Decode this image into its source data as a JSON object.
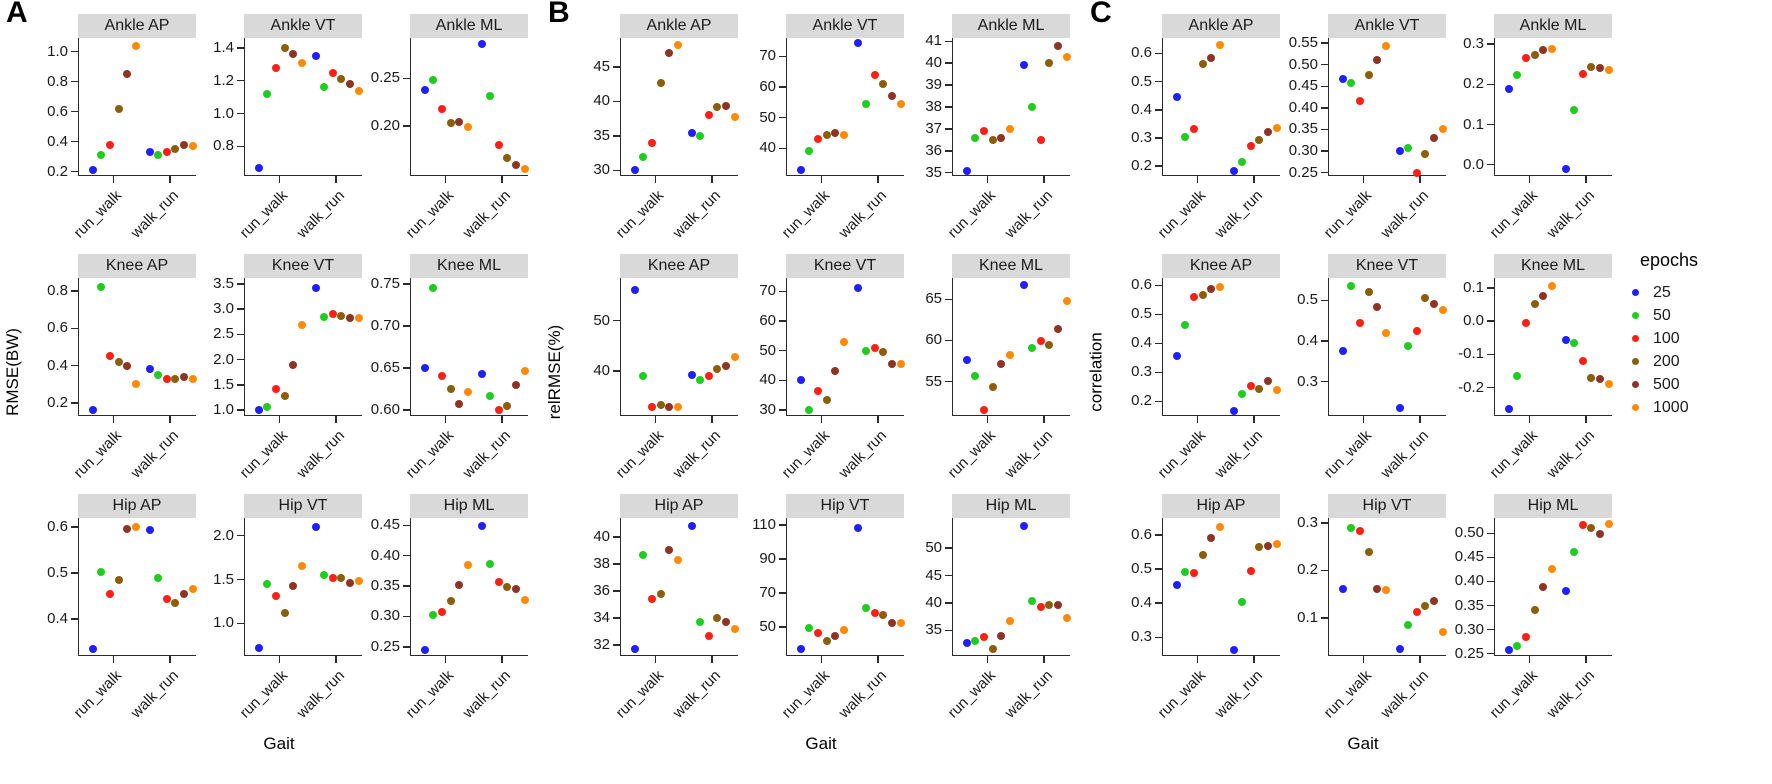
{
  "chart_data": {
    "type": "scatter",
    "title": "",
    "xlabel": "Gait",
    "categories": [
      "run_walk",
      "walk_run"
    ],
    "grid": "off",
    "legend_position": "right",
    "colors": {
      "strip_bg": "#D9D9D9",
      "axis": "#2B2B2B"
    },
    "epochs_legend": {
      "title": "epochs",
      "entries": [
        {
          "label": "25",
          "color": "#1F1FFF"
        },
        {
          "label": "50",
          "color": "#21CC21"
        },
        {
          "label": "100",
          "color": "#FF2015"
        },
        {
          "label": "200",
          "color": "#8A5E0A"
        },
        {
          "label": "500",
          "color": "#8E3425"
        },
        {
          "label": "1000",
          "color": "#FF8A05"
        }
      ]
    },
    "panels": [
      {
        "label": "A",
        "ylabel": "RMSE(BW)",
        "subplots": [
          {
            "title": "Ankle AP",
            "ylim": [
              0.17,
              1.09
            ],
            "yticks": [
              "0.2",
              "0.4",
              "0.6",
              "0.8",
              "1.0"
            ],
            "series": {
              "run_walk": [
                0.21,
                0.31,
                0.38,
                0.62,
                0.85,
                1.04
              ],
              "walk_run": [
                0.33,
                0.31,
                0.33,
                0.35,
                0.375,
                0.37
              ]
            }
          },
          {
            "title": "Ankle VT",
            "ylim": [
              0.62,
              1.46
            ],
            "yticks": [
              "0.8",
              "1.0",
              "1.2",
              "1.4"
            ],
            "series": {
              "run_walk": [
                0.67,
                1.12,
                1.28,
                1.4,
                1.36,
                1.31
              ],
              "walk_run": [
                1.35,
                1.16,
                1.25,
                1.21,
                1.18,
                1.14
              ]
            }
          },
          {
            "title": "Ankle ML",
            "ylim": [
              0.148,
              0.292
            ],
            "yticks": [
              "0.20",
              "0.25"
            ],
            "series": {
              "run_walk": [
                0.238,
                0.248,
                0.218,
                0.203,
                0.204,
                0.199
              ],
              "walk_run": [
                0.286,
                0.232,
                0.18,
                0.167,
                0.16,
                0.155
              ]
            }
          },
          {
            "title": "Knee AP",
            "ylim": [
              0.13,
              0.87
            ],
            "yticks": [
              "0.2",
              "0.4",
              "0.6",
              "0.8"
            ],
            "series": {
              "run_walk": [
                0.16,
                0.82,
                0.45,
                0.42,
                0.4,
                0.3
              ],
              "walk_run": [
                0.38,
                0.35,
                0.33,
                0.33,
                0.34,
                0.33
              ]
            }
          },
          {
            "title": "Knee VT",
            "ylim": [
              0.88,
              3.62
            ],
            "yticks": [
              "1.0",
              "1.5",
              "2.0",
              "2.5",
              "3.0",
              "3.5"
            ],
            "series": {
              "run_walk": [
                1.0,
                1.06,
                1.41,
                1.27,
                1.9,
                2.69
              ],
              "walk_run": [
                3.43,
                2.84,
                2.9,
                2.87,
                2.83,
                2.82
              ]
            }
          },
          {
            "title": "Knee ML",
            "ylim": [
              0.593,
              0.757
            ],
            "yticks": [
              "0.60",
              "0.65",
              "0.70",
              "0.75"
            ],
            "series": {
              "run_walk": [
                0.65,
                0.745,
                0.64,
                0.625,
                0.607,
                0.622
              ],
              "walk_run": [
                0.643,
                0.617,
                0.6,
                0.605,
                0.63,
                0.646
              ]
            }
          },
          {
            "title": "Hip AP",
            "ylim": [
              0.32,
              0.62
            ],
            "yticks": [
              "0.4",
              "0.5",
              "0.6"
            ],
            "series": {
              "run_walk": [
                0.335,
                0.502,
                0.455,
                0.485,
                0.597,
                0.6
              ],
              "walk_run": [
                0.595,
                0.49,
                0.445,
                0.435,
                0.455,
                0.465
              ]
            }
          },
          {
            "title": "Hip VT",
            "ylim": [
              0.63,
              2.2
            ],
            "yticks": [
              "1.0",
              "1.5",
              "2.0"
            ],
            "series": {
              "run_walk": [
                0.72,
                1.45,
                1.31,
                1.12,
                1.43,
                1.65
              ],
              "walk_run": [
                2.1,
                1.55,
                1.52,
                1.52,
                1.46,
                1.48
              ]
            }
          },
          {
            "title": "Hip ML",
            "ylim": [
              0.235,
              0.462
            ],
            "yticks": [
              "0.25",
              "0.30",
              "0.35",
              "0.40",
              "0.45"
            ],
            "series": {
              "run_walk": [
                0.245,
                0.303,
                0.307,
                0.325,
                0.352,
                0.385
              ],
              "walk_run": [
                0.449,
                0.387,
                0.356,
                0.349,
                0.345,
                0.327
              ]
            }
          }
        ]
      },
      {
        "label": "B",
        "ylabel": "relRMSE(%)",
        "subplots": [
          {
            "title": "Ankle AP",
            "ylim": [
              29.2,
              49.2
            ],
            "yticks": [
              "30",
              "35",
              "40",
              "45"
            ],
            "series": {
              "run_walk": [
                30.0,
                32.0,
                34.0,
                42.7,
                47.0,
                48.2
              ],
              "walk_run": [
                35.5,
                35.0,
                38.0,
                39.2,
                39.3,
                37.7
              ]
            }
          },
          {
            "title": "Ankle VT",
            "ylim": [
              31,
              76
            ],
            "yticks": [
              "40",
              "50",
              "60",
              "70"
            ],
            "series": {
              "run_walk": [
                33.0,
                39.0,
                43.0,
                44.5,
                45.1,
                44.3
              ],
              "walk_run": [
                74.3,
                54.5,
                64.0,
                61.0,
                57.0,
                54.5
              ]
            }
          },
          {
            "title": "Ankle ML",
            "ylim": [
              34.85,
              41.15
            ],
            "yticks": [
              "35",
              "36",
              "37",
              "38",
              "39",
              "40",
              "41"
            ],
            "series": {
              "run_walk": [
                35.1,
                36.6,
                36.9,
                36.5,
                36.6,
                37.0
              ],
              "walk_run": [
                39.9,
                38.0,
                36.5,
                40.0,
                40.8,
                40.3
              ]
            }
          },
          {
            "title": "Knee AP",
            "ylim": [
              31,
              58.5
            ],
            "yticks": [
              "40",
              "50"
            ],
            "series": {
              "run_walk": [
                56.2,
                38.9,
                32.8,
                33.1,
                32.7,
                32.7
              ],
              "walk_run": [
                39.1,
                38.1,
                39.0,
                40.3,
                40.9,
                42.7
              ]
            }
          },
          {
            "title": "Knee VT",
            "ylim": [
              28,
              74.5
            ],
            "yticks": [
              "30",
              "40",
              "50",
              "60",
              "70"
            ],
            "series": {
              "run_walk": [
                40.0,
                30.0,
                36.5,
                33.5,
                43.0,
                53.0
              ],
              "walk_run": [
                71.0,
                50.0,
                51.0,
                49.5,
                45.5,
                45.5
              ]
            }
          },
          {
            "title": "Knee ML",
            "ylim": [
              50.8,
              67.6
            ],
            "yticks": [
              "55",
              "60",
              "65"
            ],
            "series": {
              "run_walk": [
                57.6,
                55.7,
                51.5,
                54.3,
                57.1,
                58.2
              ],
              "walk_run": [
                66.7,
                59.1,
                59.9,
                59.4,
                61.4,
                64.8
              ]
            }
          },
          {
            "title": "Hip AP",
            "ylim": [
              31.2,
              41.4
            ],
            "yticks": [
              "32",
              "34",
              "36",
              "38",
              "40"
            ],
            "series": {
              "run_walk": [
                31.7,
                38.7,
                35.4,
                35.8,
                39.0,
                38.3
              ],
              "walk_run": [
                40.8,
                33.7,
                32.7,
                34.0,
                33.7,
                33.2
              ]
            }
          },
          {
            "title": "Hip VT",
            "ylim": [
              33,
              114
            ],
            "yticks": [
              "50",
              "70",
              "90",
              "110"
            ],
            "series": {
              "run_walk": [
                37.0,
                49.5,
                46.5,
                42.0,
                44.5,
                48.5
              ],
              "walk_run": [
                108.0,
                61.0,
                58.5,
                57.0,
                52.5,
                52.5
              ]
            }
          },
          {
            "title": "Hip ML",
            "ylim": [
              30.3,
              55.5
            ],
            "yticks": [
              "35",
              "40",
              "45",
              "50"
            ],
            "series": {
              "run_walk": [
                32.7,
                33.0,
                33.8,
                31.6,
                34.0,
                36.7
              ],
              "walk_run": [
                54.0,
                40.4,
                39.3,
                39.6,
                39.6,
                37.3
              ]
            }
          }
        ]
      },
      {
        "label": "C",
        "ylabel": "correlation",
        "subplots": [
          {
            "title": "Ankle AP",
            "ylim": [
              0.165,
              0.655
            ],
            "yticks": [
              "0.2",
              "0.3",
              "0.4",
              "0.5",
              "0.6"
            ],
            "series": {
              "run_walk": [
                0.447,
                0.305,
                0.333,
                0.563,
                0.585,
                0.63
              ],
              "walk_run": [
                0.183,
                0.215,
                0.273,
                0.292,
                0.32,
                0.337
              ]
            }
          },
          {
            "title": "Ankle VT",
            "ylim": [
              0.242,
              0.562
            ],
            "yticks": [
              "0.25",
              "0.30",
              "0.35",
              "0.40",
              "0.45",
              "0.50",
              "0.55"
            ],
            "series": {
              "run_walk": [
                0.468,
                0.457,
                0.417,
                0.476,
                0.511,
                0.544
              ],
              "walk_run": [
                0.299,
                0.307,
                0.25,
                0.292,
                0.331,
                0.352
              ]
            }
          },
          {
            "title": "Ankle ML",
            "ylim": [
              -0.028,
              0.315
            ],
            "yticks": [
              "0.0",
              "0.1",
              "0.2",
              "0.3"
            ],
            "series": {
              "run_walk": [
                0.188,
                0.222,
                0.265,
                0.272,
                0.285,
                0.288
              ],
              "walk_run": [
                -0.01,
                0.135,
                0.225,
                0.243,
                0.24,
                0.235
              ]
            }
          },
          {
            "title": "Knee AP",
            "ylim": [
              0.15,
              0.625
            ],
            "yticks": [
              "0.2",
              "0.3",
              "0.4",
              "0.5",
              "0.6"
            ],
            "series": {
              "run_walk": [
                0.355,
                0.463,
                0.56,
                0.565,
                0.588,
                0.595
              ],
              "walk_run": [
                0.168,
                0.225,
                0.253,
                0.243,
                0.27,
                0.24
              ]
            }
          },
          {
            "title": "Knee VT",
            "ylim": [
              0.215,
              0.555
            ],
            "yticks": [
              "0.3",
              "0.4",
              "0.5"
            ],
            "series": {
              "run_walk": [
                0.375,
                0.535,
                0.443,
                0.52,
                0.483,
                0.42
              ],
              "walk_run": [
                0.235,
                0.387,
                0.425,
                0.505,
                0.49,
                0.475
              ]
            }
          },
          {
            "title": "Knee ML",
            "ylim": [
              -0.285,
              0.13
            ],
            "yticks": [
              "-0.2",
              "-0.1",
              "0.0",
              "0.1"
            ],
            "series": {
              "run_walk": [
                -0.265,
                -0.165,
                -0.005,
                0.052,
                0.075,
                0.105
              ],
              "walk_run": [
                -0.055,
                -0.065,
                -0.12,
                -0.172,
                -0.175,
                -0.19
              ]
            }
          },
          {
            "title": "Hip AP",
            "ylim": [
              0.245,
              0.65
            ],
            "yticks": [
              "0.3",
              "0.4",
              "0.5",
              "0.6"
            ],
            "series": {
              "run_walk": [
                0.453,
                0.492,
                0.49,
                0.54,
                0.59,
                0.625
              ],
              "walk_run": [
                0.262,
                0.403,
                0.493,
                0.565,
                0.568,
                0.575
              ]
            }
          },
          {
            "title": "Hip VT",
            "ylim": [
              0.02,
              0.31
            ],
            "yticks": [
              "0.1",
              "0.2",
              "0.3"
            ],
            "series": {
              "run_walk": [
                0.16,
                0.29,
                0.283,
                0.238,
                0.16,
                0.158
              ],
              "walk_run": [
                0.035,
                0.085,
                0.113,
                0.125,
                0.135,
                0.07
              ]
            }
          },
          {
            "title": "Hip ML",
            "ylim": [
              0.245,
              0.532
            ],
            "yticks": [
              "0.25",
              "0.30",
              "0.35",
              "0.40",
              "0.45",
              "0.50"
            ],
            "series": {
              "run_walk": [
                0.258,
                0.265,
                0.285,
                0.34,
                0.388,
                0.425
              ],
              "walk_run": [
                0.38,
                0.462,
                0.518,
                0.512,
                0.498,
                0.52
              ]
            }
          }
        ]
      }
    ]
  }
}
